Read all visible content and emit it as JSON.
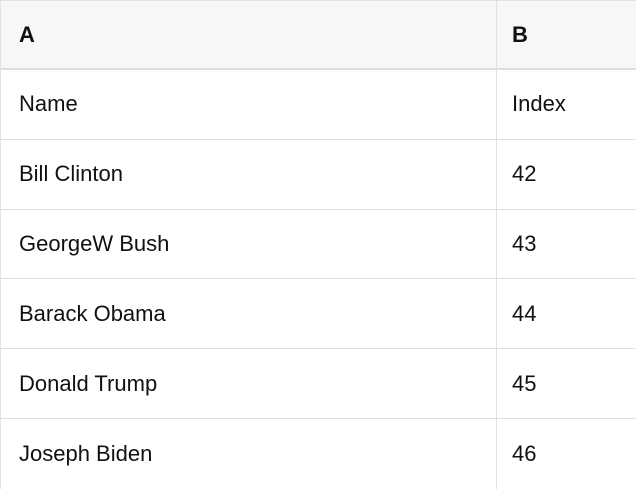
{
  "table": {
    "columns": [
      "A",
      "B"
    ],
    "rows": [
      [
        "Name",
        "Index"
      ],
      [
        "Bill Clinton",
        "42"
      ],
      [
        "GeorgeW Bush",
        "43"
      ],
      [
        "Barack Obama",
        "44"
      ],
      [
        "Donald Trump",
        "45"
      ],
      [
        "Joseph Biden",
        "46"
      ]
    ]
  },
  "colors": {
    "header_background": "#f7f7f7",
    "border": "#e0e0e0",
    "text": "#111111",
    "background": "#ffffff"
  }
}
